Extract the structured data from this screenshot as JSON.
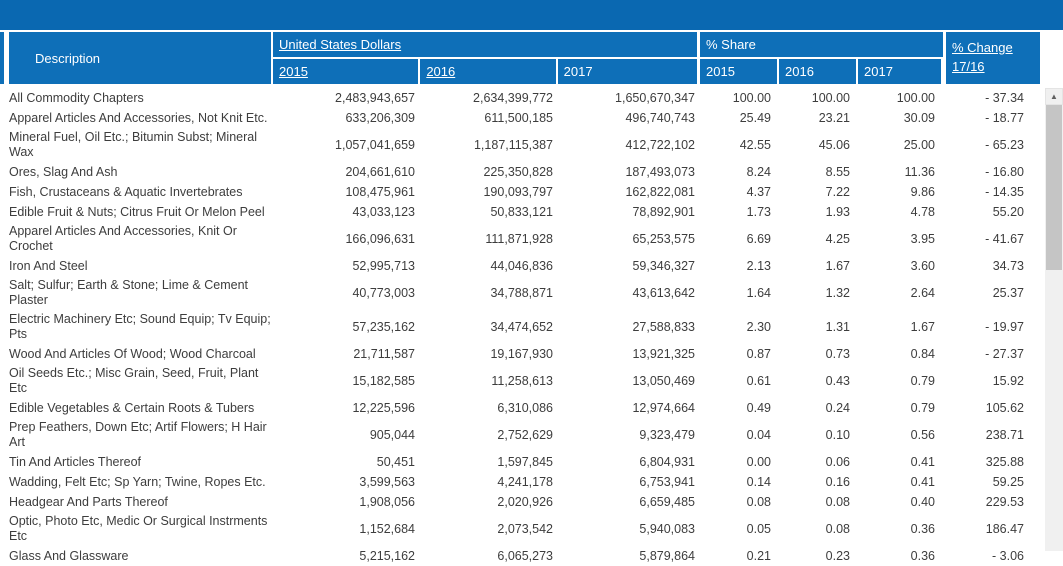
{
  "header": {
    "description": "Description",
    "usd_group": "United States Dollars",
    "usd_2015": "2015",
    "usd_2016": "2016",
    "usd_2017": "2017",
    "share_group": "% Share",
    "share_2015": "2015",
    "share_2016": "2016",
    "share_2017": "2017",
    "change": "% Change 17/16"
  },
  "rows": [
    {
      "description": "All Commodity Chapters",
      "usd_2015": "2,483,943,657",
      "usd_2016": "2,634,399,772",
      "usd_2017": "1,650,670,347",
      "share_2015": "100.00",
      "share_2016": "100.00",
      "share_2017": "100.00",
      "change": "- 37.34"
    },
    {
      "description": "Apparel Articles And Accessories, Not Knit Etc.",
      "usd_2015": "633,206,309",
      "usd_2016": "611,500,185",
      "usd_2017": "496,740,743",
      "share_2015": "25.49",
      "share_2016": "23.21",
      "share_2017": "30.09",
      "change": "- 18.77"
    },
    {
      "description": "Mineral Fuel, Oil Etc.; Bitumin Subst; Mineral Wax",
      "usd_2015": "1,057,041,659",
      "usd_2016": "1,187,115,387",
      "usd_2017": "412,722,102",
      "share_2015": "42.55",
      "share_2016": "45.06",
      "share_2017": "25.00",
      "change": "- 65.23"
    },
    {
      "description": "Ores, Slag And Ash",
      "usd_2015": "204,661,610",
      "usd_2016": "225,350,828",
      "usd_2017": "187,493,073",
      "share_2015": "8.24",
      "share_2016": "8.55",
      "share_2017": "11.36",
      "change": "- 16.80"
    },
    {
      "description": "Fish, Crustaceans & Aquatic Invertebrates",
      "usd_2015": "108,475,961",
      "usd_2016": "190,093,797",
      "usd_2017": "162,822,081",
      "share_2015": "4.37",
      "share_2016": "7.22",
      "share_2017": "9.86",
      "change": "- 14.35"
    },
    {
      "description": "Edible Fruit & Nuts; Citrus Fruit Or Melon Peel",
      "usd_2015": "43,033,123",
      "usd_2016": "50,833,121",
      "usd_2017": "78,892,901",
      "share_2015": "1.73",
      "share_2016": "1.93",
      "share_2017": "4.78",
      "change": "55.20"
    },
    {
      "description": "Apparel Articles And Accessories, Knit Or Crochet",
      "usd_2015": "166,096,631",
      "usd_2016": "111,871,928",
      "usd_2017": "65,253,575",
      "share_2015": "6.69",
      "share_2016": "4.25",
      "share_2017": "3.95",
      "change": "- 41.67"
    },
    {
      "description": "Iron And Steel",
      "usd_2015": "52,995,713",
      "usd_2016": "44,046,836",
      "usd_2017": "59,346,327",
      "share_2015": "2.13",
      "share_2016": "1.67",
      "share_2017": "3.60",
      "change": "34.73"
    },
    {
      "description": "Salt; Sulfur; Earth & Stone; Lime & Cement Plaster",
      "usd_2015": "40,773,003",
      "usd_2016": "34,788,871",
      "usd_2017": "43,613,642",
      "share_2015": "1.64",
      "share_2016": "1.32",
      "share_2017": "2.64",
      "change": "25.37"
    },
    {
      "description": "Electric Machinery Etc; Sound Equip; Tv Equip; Pts",
      "usd_2015": "57,235,162",
      "usd_2016": "34,474,652",
      "usd_2017": "27,588,833",
      "share_2015": "2.30",
      "share_2016": "1.31",
      "share_2017": "1.67",
      "change": "- 19.97"
    },
    {
      "description": "Wood And Articles Of Wood; Wood Charcoal",
      "usd_2015": "21,711,587",
      "usd_2016": "19,167,930",
      "usd_2017": "13,921,325",
      "share_2015": "0.87",
      "share_2016": "0.73",
      "share_2017": "0.84",
      "change": "- 27.37"
    },
    {
      "description": "Oil Seeds Etc.; Misc Grain, Seed, Fruit, Plant Etc",
      "usd_2015": "15,182,585",
      "usd_2016": "11,258,613",
      "usd_2017": "13,050,469",
      "share_2015": "0.61",
      "share_2016": "0.43",
      "share_2017": "0.79",
      "change": "15.92"
    },
    {
      "description": "Edible Vegetables & Certain Roots & Tubers",
      "usd_2015": "12,225,596",
      "usd_2016": "6,310,086",
      "usd_2017": "12,974,664",
      "share_2015": "0.49",
      "share_2016": "0.24",
      "share_2017": "0.79",
      "change": "105.62"
    },
    {
      "description": "Prep Feathers, Down Etc; Artif Flowers; H Hair Art",
      "usd_2015": "905,044",
      "usd_2016": "2,752,629",
      "usd_2017": "9,323,479",
      "share_2015": "0.04",
      "share_2016": "0.10",
      "share_2017": "0.56",
      "change": "238.71"
    },
    {
      "description": "Tin And Articles Thereof",
      "usd_2015": "50,451",
      "usd_2016": "1,597,845",
      "usd_2017": "6,804,931",
      "share_2015": "0.00",
      "share_2016": "0.06",
      "share_2017": "0.41",
      "change": "325.88"
    },
    {
      "description": "Wadding, Felt Etc; Sp Yarn; Twine, Ropes Etc.",
      "usd_2015": "3,599,563",
      "usd_2016": "4,241,178",
      "usd_2017": "6,753,941",
      "share_2015": "0.14",
      "share_2016": "0.16",
      "share_2017": "0.41",
      "change": "59.25"
    },
    {
      "description": "Headgear And Parts Thereof",
      "usd_2015": "1,908,056",
      "usd_2016": "2,020,926",
      "usd_2017": "6,659,485",
      "share_2015": "0.08",
      "share_2016": "0.08",
      "share_2017": "0.40",
      "change": "229.53"
    },
    {
      "description": "Optic, Photo Etc, Medic Or Surgical Instrments Etc",
      "usd_2015": "1,152,684",
      "usd_2016": "2,073,542",
      "usd_2017": "5,940,083",
      "share_2015": "0.05",
      "share_2016": "0.08",
      "share_2017": "0.36",
      "change": "186.47"
    },
    {
      "description": "Glass And Glassware",
      "usd_2015": "5,215,162",
      "usd_2016": "6,065,273",
      "usd_2017": "5,879,864",
      "share_2015": "0.21",
      "share_2016": "0.23",
      "share_2017": "0.36",
      "change": "- 3.06"
    }
  ],
  "scrollbar": {
    "up_arrow": "▲"
  },
  "colors": {
    "topbar_blue": "#0a68b1",
    "header_blue": "#0e6fb8",
    "body_text": "#3d3d3d",
    "scroll_thumb": "#c5c5c5"
  }
}
